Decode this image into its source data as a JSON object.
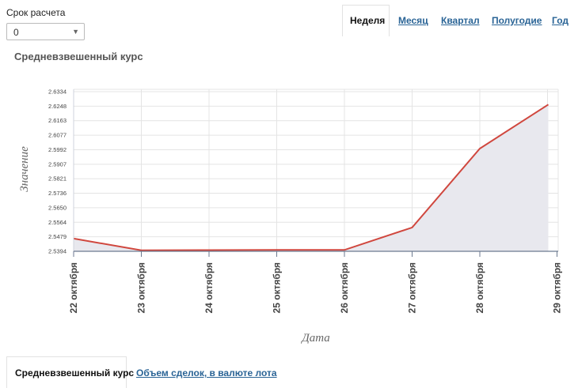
{
  "controls": {
    "term_label": "Срок расчета",
    "term_value": "0"
  },
  "period_tabs": [
    {
      "label": "Неделя",
      "active": true
    },
    {
      "label": "Месяц",
      "active": false
    },
    {
      "label": "Квартал",
      "active": false
    },
    {
      "label": "Полугодие",
      "active": false
    },
    {
      "label": "Год",
      "active": false
    }
  ],
  "chart_title": "Средневзвешенный курс",
  "bottom_tabs": [
    {
      "label": "Средневзвешенный курс",
      "active": true
    },
    {
      "label": "Объем сделок, в валюте лота",
      "active": false
    }
  ],
  "chart_data": {
    "type": "area",
    "xlabel": "Дата",
    "ylabel": "Значение",
    "categories": [
      "22 октября",
      "23 октября",
      "24 октября",
      "25 октября",
      "26 октября",
      "27 октября",
      "28 октября",
      "29 октября"
    ],
    "y_ticks": [
      "2.6334",
      "2.6248",
      "2.6163",
      "2.6077",
      "2.5992",
      "2.5907",
      "2.5821",
      "2.5736",
      "2.5650",
      "2.5564",
      "2.5479",
      "2.5394"
    ],
    "ylim": [
      2.5394,
      2.6334
    ],
    "grid": true,
    "colors": {
      "line": "#d0473e",
      "fill": "#e8e8ee",
      "grid": "#e4e4e4"
    },
    "series": [
      {
        "values": [
          2.5469,
          2.54,
          2.5401,
          2.5402,
          2.5402,
          2.5534,
          2.5999,
          2.6258
        ]
      }
    ]
  }
}
